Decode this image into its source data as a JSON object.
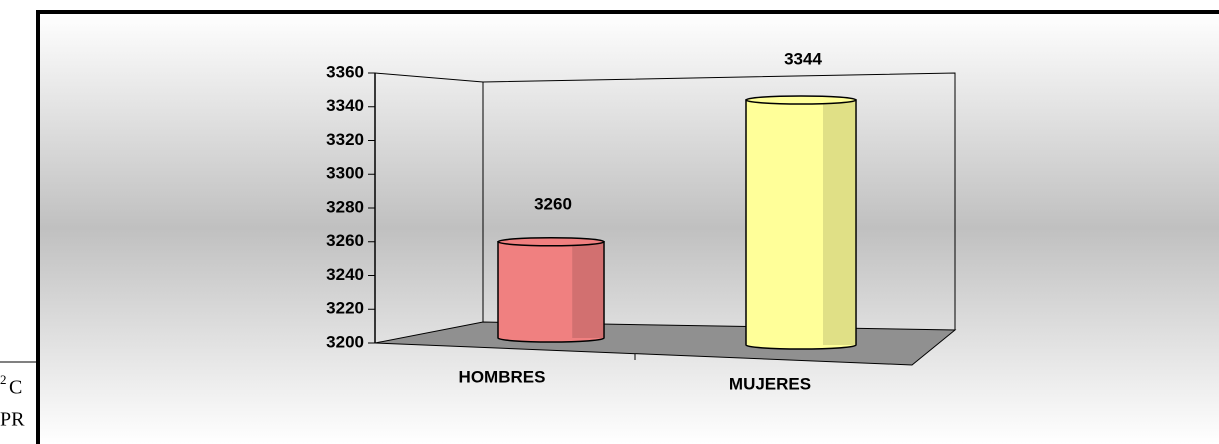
{
  "chart_data": {
    "type": "bar3d",
    "categories": [
      "HOMBRES",
      "MUJERES"
    ],
    "values": [
      3260,
      3344
    ],
    "colors": [
      "#f08080",
      "#ffff99"
    ],
    "ylim": [
      3200,
      3360
    ],
    "yticks": [
      3200,
      3220,
      3240,
      3260,
      3280,
      3300,
      3320,
      3340,
      3360
    ]
  },
  "footnote": {
    "marker": "2",
    "lines": [
      "C",
      "PR"
    ]
  }
}
